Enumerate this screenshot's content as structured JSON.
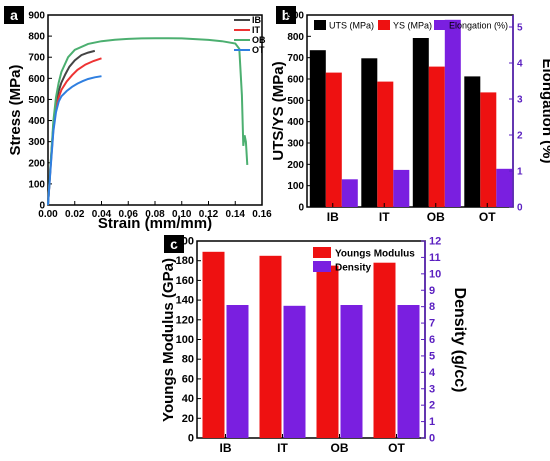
{
  "chart_data": [
    {
      "panel": "a",
      "type": "line",
      "xlabel": "Strain (mm/mm)",
      "ylabel": "Stress (MPa)",
      "xlim": [
        0.0,
        0.16
      ],
      "ylim": [
        0,
        900
      ],
      "xticks": [
        "0.00",
        "0.02",
        "0.04",
        "0.06",
        "0.08",
        "0.10",
        "0.12",
        "0.14",
        "0.16"
      ],
      "yticks": [
        "0",
        "100",
        "200",
        "300",
        "400",
        "500",
        "600",
        "700",
        "800",
        "900"
      ],
      "legend": "top-left",
      "series": [
        {
          "name": "IB",
          "color": "#444444",
          "x": [
            0,
            0.002,
            0.004,
            0.006,
            0.008,
            0.01,
            0.013,
            0.016,
            0.02,
            0.025,
            0.03,
            0.035
          ],
          "y": [
            0,
            200,
            380,
            480,
            540,
            580,
            620,
            655,
            685,
            710,
            722,
            730
          ]
        },
        {
          "name": "IT",
          "color": "#ee3333",
          "x": [
            0,
            0.002,
            0.004,
            0.006,
            0.008,
            0.01,
            0.014,
            0.018,
            0.022,
            0.028,
            0.034,
            0.04
          ],
          "y": [
            0,
            190,
            360,
            455,
            510,
            545,
            585,
            615,
            640,
            665,
            682,
            695
          ]
        },
        {
          "name": "OB",
          "color": "#4caf70",
          "x": [
            0,
            0.002,
            0.004,
            0.006,
            0.008,
            0.01,
            0.015,
            0.02,
            0.03,
            0.04,
            0.05,
            0.06,
            0.07,
            0.08,
            0.09,
            0.1,
            0.11,
            0.12,
            0.13,
            0.14,
            0.143,
            0.145,
            0.146,
            0.147,
            0.148,
            0.149
          ],
          "y": [
            0,
            200,
            400,
            510,
            580,
            630,
            700,
            735,
            763,
            776,
            783,
            787,
            789,
            790,
            790,
            789,
            786,
            782,
            776,
            765,
            740,
            520,
            280,
            330,
            300,
            190
          ]
        },
        {
          "name": "OT",
          "color": "#2f7fe0",
          "x": [
            0,
            0.002,
            0.004,
            0.006,
            0.008,
            0.01,
            0.014,
            0.018,
            0.022,
            0.026,
            0.03,
            0.035,
            0.04
          ],
          "y": [
            0,
            180,
            350,
            440,
            490,
            515,
            540,
            560,
            575,
            587,
            597,
            605,
            610
          ]
        }
      ]
    },
    {
      "panel": "b",
      "type": "bar",
      "categories": [
        "IB",
        "IT",
        "OB",
        "OT"
      ],
      "xlabel": "",
      "ylabel": "UTS/YS (MPa)",
      "ylim": [
        0,
        900
      ],
      "yticks": [
        "0",
        "100",
        "200",
        "300",
        "400",
        "500",
        "600",
        "700",
        "800",
        "900"
      ],
      "y2label": "Elongation (%)",
      "y2lim": [
        0,
        5.333
      ],
      "y2ticks": [
        "0",
        "1",
        "2",
        "3",
        "4",
        "5"
      ],
      "legend": "top",
      "series": [
        {
          "name": "UTS (MPa)",
          "color": "#000000",
          "axis": "left",
          "values": [
            735,
            697,
            792,
            612
          ]
        },
        {
          "name": "YS (MPa)",
          "color": "#ee1111",
          "axis": "left",
          "values": [
            630,
            588,
            658,
            537
          ]
        },
        {
          "name": "Elongation (%)",
          "color": "#7a1fe0",
          "axis": "right",
          "values": [
            0.77,
            1.03,
            5.2,
            1.06
          ]
        }
      ]
    },
    {
      "panel": "c",
      "type": "bar",
      "categories": [
        "IB",
        "IT",
        "OB",
        "OT"
      ],
      "xlabel": "",
      "ylabel": "Youngs Modulus (GPa)",
      "ylim": [
        0,
        200
      ],
      "yticks": [
        "0",
        "20",
        "40",
        "60",
        "80",
        "100",
        "120",
        "140",
        "160",
        "180",
        "200"
      ],
      "y2label": "Density (g/cc)",
      "y2lim": [
        0,
        12
      ],
      "y2ticks": [
        "0",
        "1",
        "2",
        "3",
        "4",
        "5",
        "6",
        "7",
        "8",
        "9",
        "10",
        "11",
        "12"
      ],
      "legend": "top-right",
      "series": [
        {
          "name": "Youngs Modulus",
          "color": "#ee1111",
          "axis": "left",
          "values": [
            189,
            185,
            175,
            178
          ]
        },
        {
          "name": "Density",
          "color": "#7a1fe0",
          "axis": "right",
          "values": [
            8.1,
            8.05,
            8.1,
            8.1
          ]
        }
      ]
    }
  ]
}
